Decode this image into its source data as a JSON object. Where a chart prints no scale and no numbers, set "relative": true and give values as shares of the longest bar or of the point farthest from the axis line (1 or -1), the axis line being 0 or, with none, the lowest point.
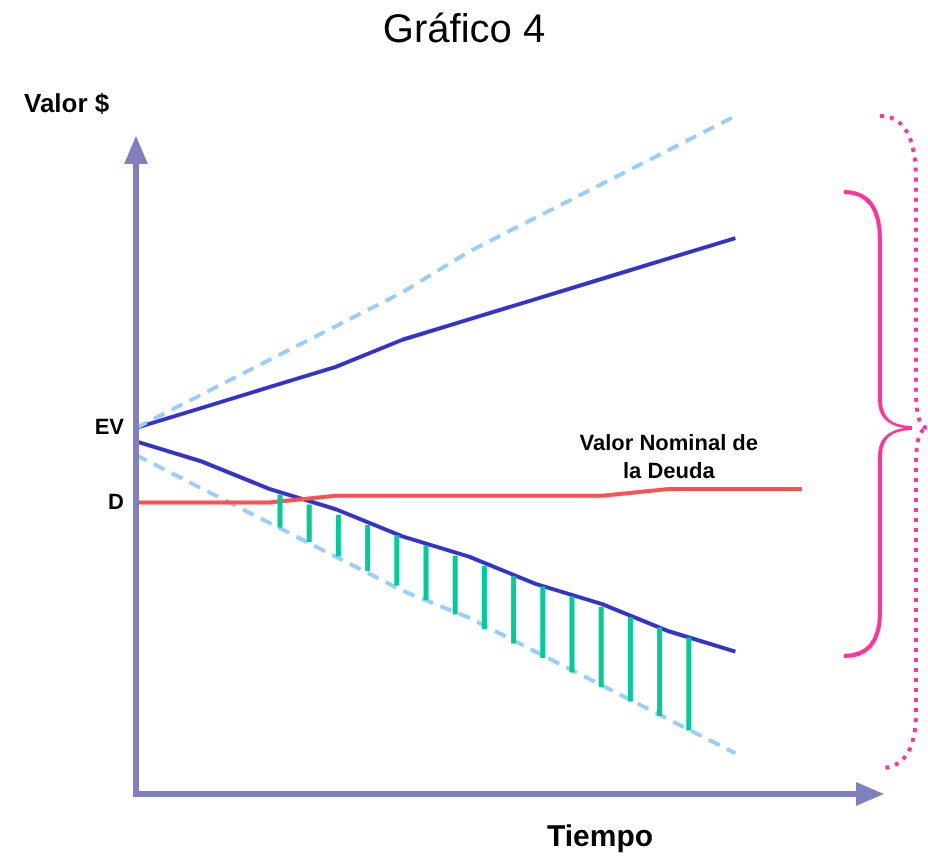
{
  "chart_data": {
    "type": "line",
    "title": "Gráfico 4",
    "xlabel": "Tiempo",
    "ylabel": "Valor $",
    "relative": true,
    "legend": false,
    "marker": "none",
    "categories": [
      null,
      null,
      null,
      null,
      null,
      null,
      null,
      null,
      null,
      null,
      null
    ],
    "series": [
      {
        "line_style": "dashed",
        "color": "#99ccff",
        "values": [
          0.54,
          0.59,
          0.64,
          0.69,
          0.74,
          0.8,
          0.85,
          0.9,
          0.95,
          1,
          null
        ]
      },
      {
        "line_style": "solid",
        "color": "#3333cc",
        "values": [
          0.54,
          0.57,
          0.6,
          0.63,
          0.67,
          0.7,
          0.73,
          0.76,
          0.79,
          0.82,
          null
        ]
      },
      {
        "line_style": "solid",
        "color": "#ff5050",
        "values": [
          0.43,
          0.43,
          0.43,
          0.44,
          0.44,
          0.44,
          0.44,
          0.44,
          0.45,
          0.45,
          0.45
        ]
      },
      {
        "line_style": "solid",
        "color": "#3333cc",
        "values": [
          0.52,
          0.49,
          0.45,
          0.42,
          0.38,
          0.35,
          0.31,
          0.28,
          0.24,
          0.21,
          null
        ]
      },
      {
        "line_style": "dashed",
        "color": "#99ccff",
        "values": [
          0.5,
          0.45,
          0.4,
          0.35,
          0.3,
          0.26,
          0.21,
          0.16,
          0.11,
          0.06,
          null
        ]
      }
    ],
    "annotations": [
      "EV",
      "D",
      "Valor Nominal de\nla Deuda"
    ]
  }
}
